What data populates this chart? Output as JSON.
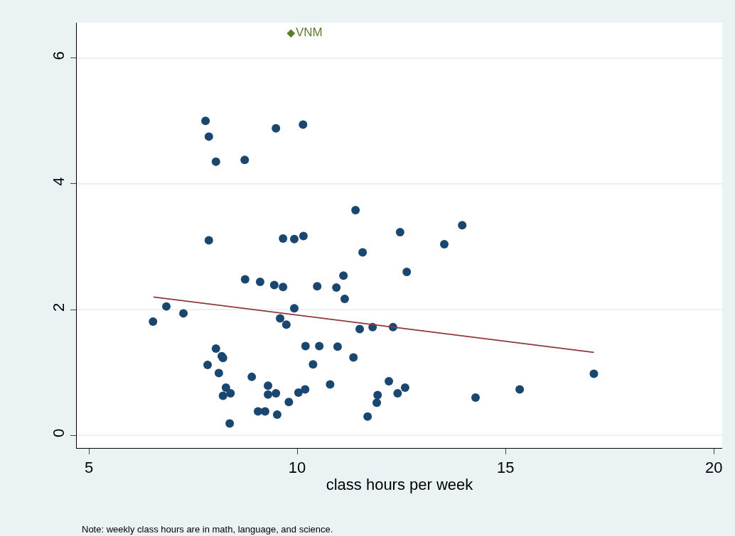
{
  "chart_data": {
    "type": "scatter",
    "xlabel": "class hours per week",
    "xlim": [
      4.71,
      20.2
    ],
    "ylim": [
      -0.2,
      6.56
    ],
    "xticks": [
      5,
      10,
      15,
      20
    ],
    "yticks": [
      0,
      2,
      4,
      6
    ],
    "grid": "y",
    "marker": "circle",
    "annotations": [
      "Note: weekly class hours are in math, language, and science."
    ],
    "series": [
      {
        "color": "#1a476f",
        "x": [
          6.54,
          6.86,
          7.27,
          7.8,
          7.88,
          7.88,
          7.85,
          8.05,
          8.05,
          8.12,
          8.19,
          8.22,
          8.22,
          8.29,
          8.4,
          8.38,
          8.74,
          8.75,
          8.91,
          9.06,
          9.11,
          9.23,
          9.3,
          9.3,
          9.45,
          9.49,
          9.49,
          9.52,
          9.59,
          9.66,
          9.66,
          9.74,
          9.8,
          9.93,
          9.93,
          10.03,
          10.14,
          10.15,
          10.19,
          10.2,
          10.38,
          10.48,
          10.53,
          10.79,
          10.94,
          10.97,
          11.11,
          11.14,
          11.35,
          11.4,
          11.5,
          11.57,
          11.69,
          11.81,
          11.91,
          11.93,
          12.2,
          12.3,
          12.41,
          12.47,
          12.59,
          12.63,
          13.53,
          13.96,
          14.28,
          15.34,
          17.12
        ],
        "values": [
          1.81,
          2.05,
          1.94,
          5.0,
          4.75,
          3.1,
          1.12,
          4.35,
          1.38,
          0.99,
          1.26,
          1.23,
          0.63,
          0.76,
          0.67,
          0.19,
          4.38,
          2.48,
          0.93,
          0.38,
          2.44,
          0.38,
          0.79,
          0.65,
          2.39,
          4.88,
          0.67,
          0.33,
          1.86,
          2.36,
          3.13,
          1.76,
          0.53,
          3.12,
          2.02,
          0.68,
          4.94,
          3.17,
          0.73,
          1.42,
          1.13,
          2.37,
          1.42,
          0.81,
          2.35,
          1.41,
          2.54,
          2.17,
          1.24,
          3.58,
          1.69,
          2.91,
          0.3,
          1.72,
          0.52,
          0.64,
          0.86,
          1.72,
          0.67,
          3.23,
          0.76,
          2.6,
          3.04,
          3.34,
          0.6,
          0.73,
          0.98
        ]
      },
      {
        "name": "VNM",
        "color": "#5a7d2a",
        "marker": "diamond",
        "x": [
          9.85
        ],
        "values": [
          6.39
        ]
      },
      {
        "type": "line",
        "marker": "none",
        "color": "#90353b",
        "x": [
          6.55,
          17.12
        ],
        "values": [
          2.2,
          1.32
        ]
      }
    ]
  }
}
